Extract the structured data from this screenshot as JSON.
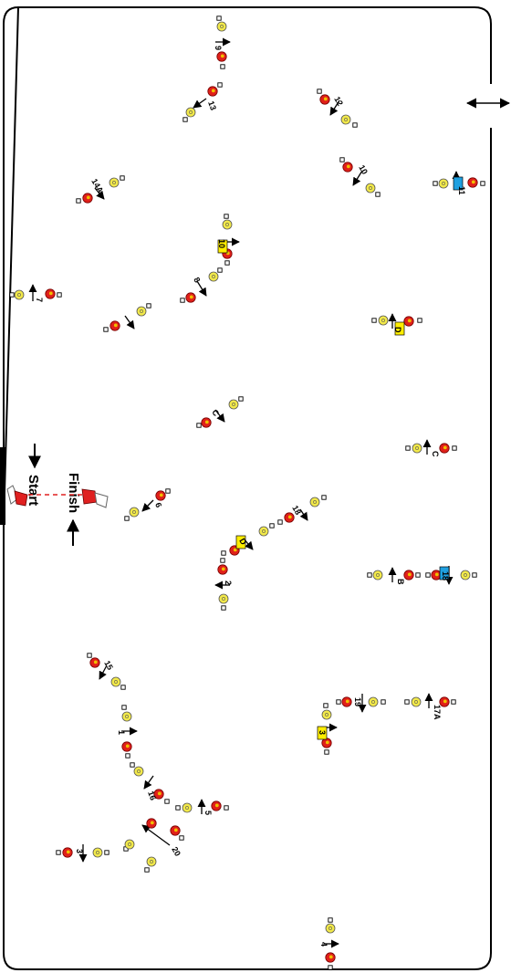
{
  "labels": {
    "start": "Start",
    "finish": "Finish"
  },
  "colors": {
    "cone_red": "#e0201a",
    "cone_red_center": "#f0c000",
    "cone_yellow": "#f2e94a",
    "pylon_fill": "#ffffff",
    "tag_yellow": "#ffee00",
    "tag_blue": "#1fa0e0",
    "flag_red": "#e02020",
    "dashed_line": "#e02020",
    "ring_stroke": "#000000"
  },
  "stations": [
    {
      "id": "s9",
      "label": "9"
    },
    {
      "id": "s13",
      "label": "13"
    },
    {
      "id": "s12",
      "label": "12"
    },
    {
      "id": "s10a",
      "label": "10"
    },
    {
      "id": "s14a",
      "label": "14A"
    },
    {
      "id": "s11",
      "label": "11"
    },
    {
      "id": "s10b",
      "label": "10"
    },
    {
      "id": "s7",
      "label": "7"
    },
    {
      "id": "s8",
      "label": "8"
    },
    {
      "id": "sDa",
      "label": "D"
    },
    {
      "id": "sC1",
      "label": "C"
    },
    {
      "id": "sC2",
      "label": "C"
    },
    {
      "id": "s6",
      "label": "6"
    },
    {
      "id": "s18",
      "label": "18"
    },
    {
      "id": "sDb",
      "label": "D"
    },
    {
      "id": "s2",
      "label": "2"
    },
    {
      "id": "sB",
      "label": "B"
    },
    {
      "id": "s18b",
      "label": "18"
    },
    {
      "id": "s15",
      "label": "15"
    },
    {
      "id": "s19",
      "label": "19"
    },
    {
      "id": "s17A",
      "label": "17A"
    },
    {
      "id": "s1",
      "label": "1"
    },
    {
      "id": "s3y",
      "label": "3"
    },
    {
      "id": "s16",
      "label": "16"
    },
    {
      "id": "s5",
      "label": "5"
    },
    {
      "id": "s20",
      "label": "20"
    },
    {
      "id": "s3",
      "label": "3"
    },
    {
      "id": "s4",
      "label": "4"
    }
  ]
}
